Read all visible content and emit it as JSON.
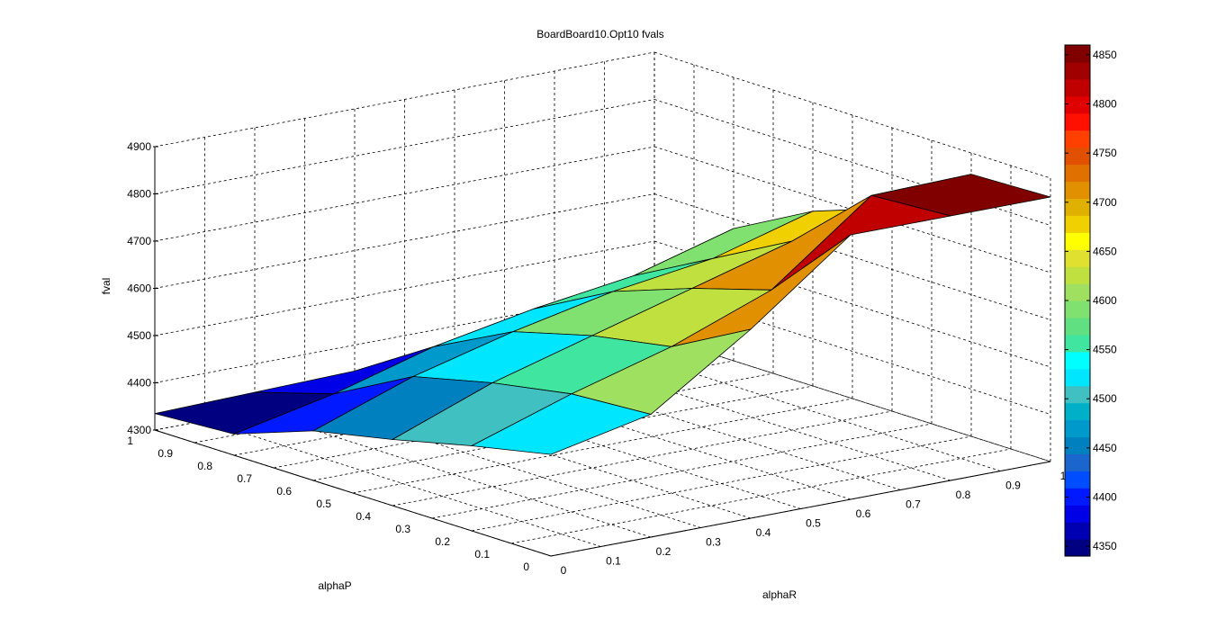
{
  "chart_data": {
    "type": "surface3d",
    "title": "BoardBoard10.Opt10 fvals",
    "xlabel": "alphaR",
    "ylabel": "alphaP",
    "zlabel": "fval",
    "x_ticks": [
      "0",
      "0.1",
      "0.2",
      "0.3",
      "0.4",
      "0.5",
      "0.6",
      "0.7",
      "0.8",
      "0.9",
      "1"
    ],
    "y_ticks": [
      "0",
      "0.1",
      "0.2",
      "0.3",
      "0.4",
      "0.5",
      "0.6",
      "0.7",
      "0.8",
      "0.9",
      "1"
    ],
    "z_ticks": [
      "4300",
      "4400",
      "4500",
      "4600",
      "4700",
      "4800",
      "4900"
    ],
    "zlim": [
      4300,
      4900
    ],
    "xlim": [
      0,
      1
    ],
    "ylim": [
      0,
      1
    ],
    "grid": true,
    "x": [
      0,
      0.2,
      0.4,
      0.6,
      0.8,
      1.0
    ],
    "y": [
      1.0,
      0.8,
      0.6,
      0.4,
      0.2,
      0.0
    ],
    "z": [
      [
        4335,
        4340,
        4345,
        4355,
        4400,
        4380
      ],
      [
        4345,
        4390,
        4450,
        4490,
        4520,
        4580
      ],
      [
        4405,
        4480,
        4535,
        4580,
        4610,
        4670
      ],
      [
        4440,
        4520,
        4580,
        4640,
        4700,
        4730
      ],
      [
        4480,
        4550,
        4610,
        4690,
        4850,
        4855
      ],
      [
        4515,
        4560,
        4700,
        4860,
        4860,
        4860
      ]
    ],
    "colorbar": {
      "ticks": [
        "4350",
        "4400",
        "4450",
        "4500",
        "4550",
        "4600",
        "4650",
        "4700",
        "4750",
        "4800",
        "4850"
      ],
      "range": [
        4340,
        4860
      ],
      "colors": [
        "#000080",
        "#0000b3",
        "#0000e6",
        "#0019ff",
        "#004cff",
        "#1a66cc",
        "#0080bf",
        "#0099cc",
        "#00b0c8",
        "#40c0c0",
        "#00e6ff",
        "#00ffff",
        "#40e6a0",
        "#60e080",
        "#80e070",
        "#a0e060",
        "#c0e040",
        "#e0e030",
        "#ffff00",
        "#f0d000",
        "#e0b000",
        "#e09000",
        "#e07000",
        "#e05000",
        "#ff4000",
        "#ff1000",
        "#e00000",
        "#c00000",
        "#a00000",
        "#800000"
      ]
    }
  }
}
